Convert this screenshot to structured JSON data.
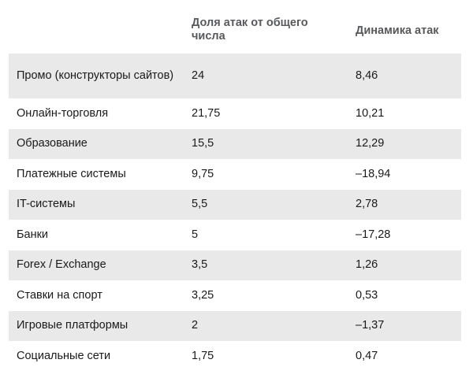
{
  "colors": {
    "header_text": "#58595b",
    "body_text": "#1a1a1a",
    "shade_row": "#e9e9e9",
    "background": "#ffffff"
  },
  "table": {
    "headers": [
      "",
      "Доля атак от общего числа",
      "Динамика атак"
    ],
    "rows": [
      {
        "sector": "Промо (конструкторы сайтов)",
        "share": "24",
        "dynamics": "8,46"
      },
      {
        "sector": "Онлайн-торговля",
        "share": "21,75",
        "dynamics": "10,21"
      },
      {
        "sector": "Образование",
        "share": "15,5",
        "dynamics": "12,29"
      },
      {
        "sector": "Платежные системы",
        "share": "9,75",
        "dynamics": "–18,94"
      },
      {
        "sector": "IT-системы",
        "share": "5,5",
        "dynamics": "2,78"
      },
      {
        "sector": "Банки",
        "share": "5",
        "dynamics": "–17,28"
      },
      {
        "sector": "Forex / Exchange",
        "share": "3,5",
        "dynamics": "1,26"
      },
      {
        "sector": "Ставки на спорт",
        "share": "3,25",
        "dynamics": "0,53"
      },
      {
        "sector": "Игровые платформы",
        "share": "2",
        "dynamics": "–1,37"
      },
      {
        "sector": "Социальные сети",
        "share": "1,75",
        "dynamics": "0,47"
      }
    ]
  }
}
